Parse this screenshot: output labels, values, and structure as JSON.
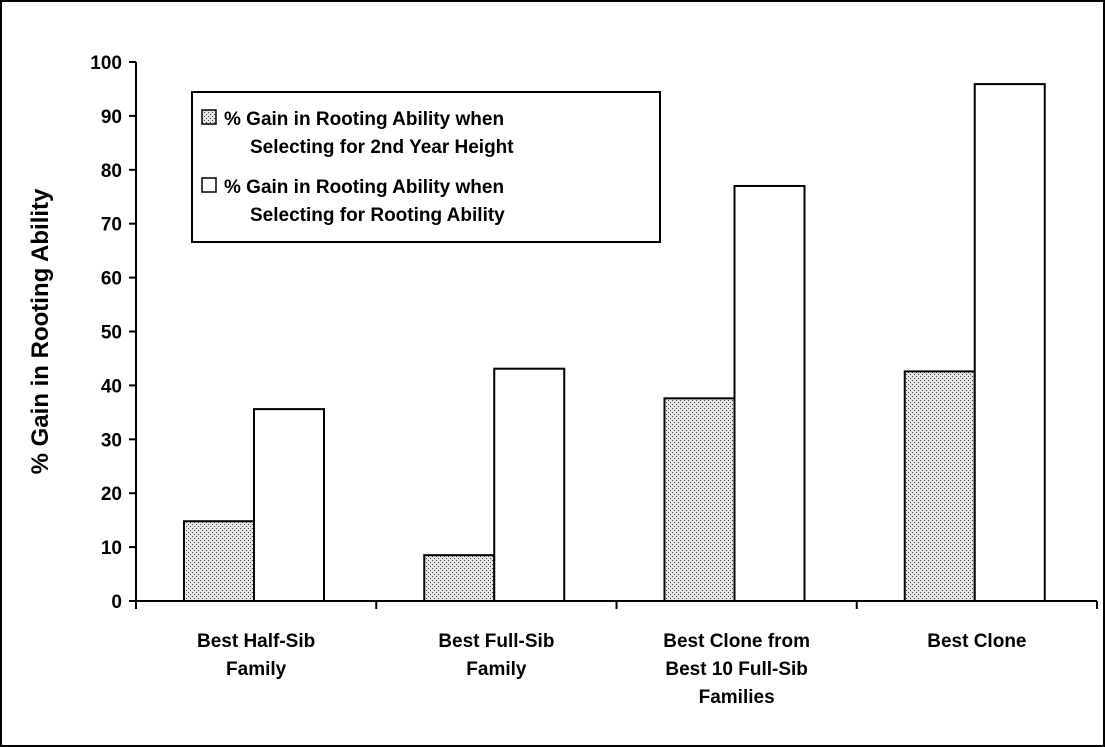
{
  "chart_data": {
    "type": "bar",
    "title": "",
    "xlabel": "",
    "ylabel": "% Gain in Rooting Ability",
    "ylim": [
      0,
      100
    ],
    "yticks": [
      0,
      10,
      20,
      30,
      40,
      50,
      60,
      70,
      80,
      90,
      100
    ],
    "categories": [
      [
        "Best Half-Sib",
        "Family"
      ],
      [
        "Best Full-Sib",
        "Family"
      ],
      [
        "Best Clone from",
        "Best 10 Full-Sib",
        "Families"
      ],
      [
        "Best Clone"
      ]
    ],
    "series": [
      {
        "name": [
          "% Gain in Rooting Ability when",
          "Selecting for 2nd Year Height"
        ],
        "pattern": "dotted",
        "color": "#c8c8c8",
        "values": [
          14.8,
          8.5,
          37.6,
          42.6
        ]
      },
      {
        "name": [
          "% Gain in Rooting Ability when",
          "Selecting for Rooting Ability"
        ],
        "pattern": "solid",
        "color": "#ffffff",
        "values": [
          35.6,
          43.1,
          77.0,
          95.9
        ]
      }
    ],
    "grid": false,
    "legend_position": "top-left"
  }
}
